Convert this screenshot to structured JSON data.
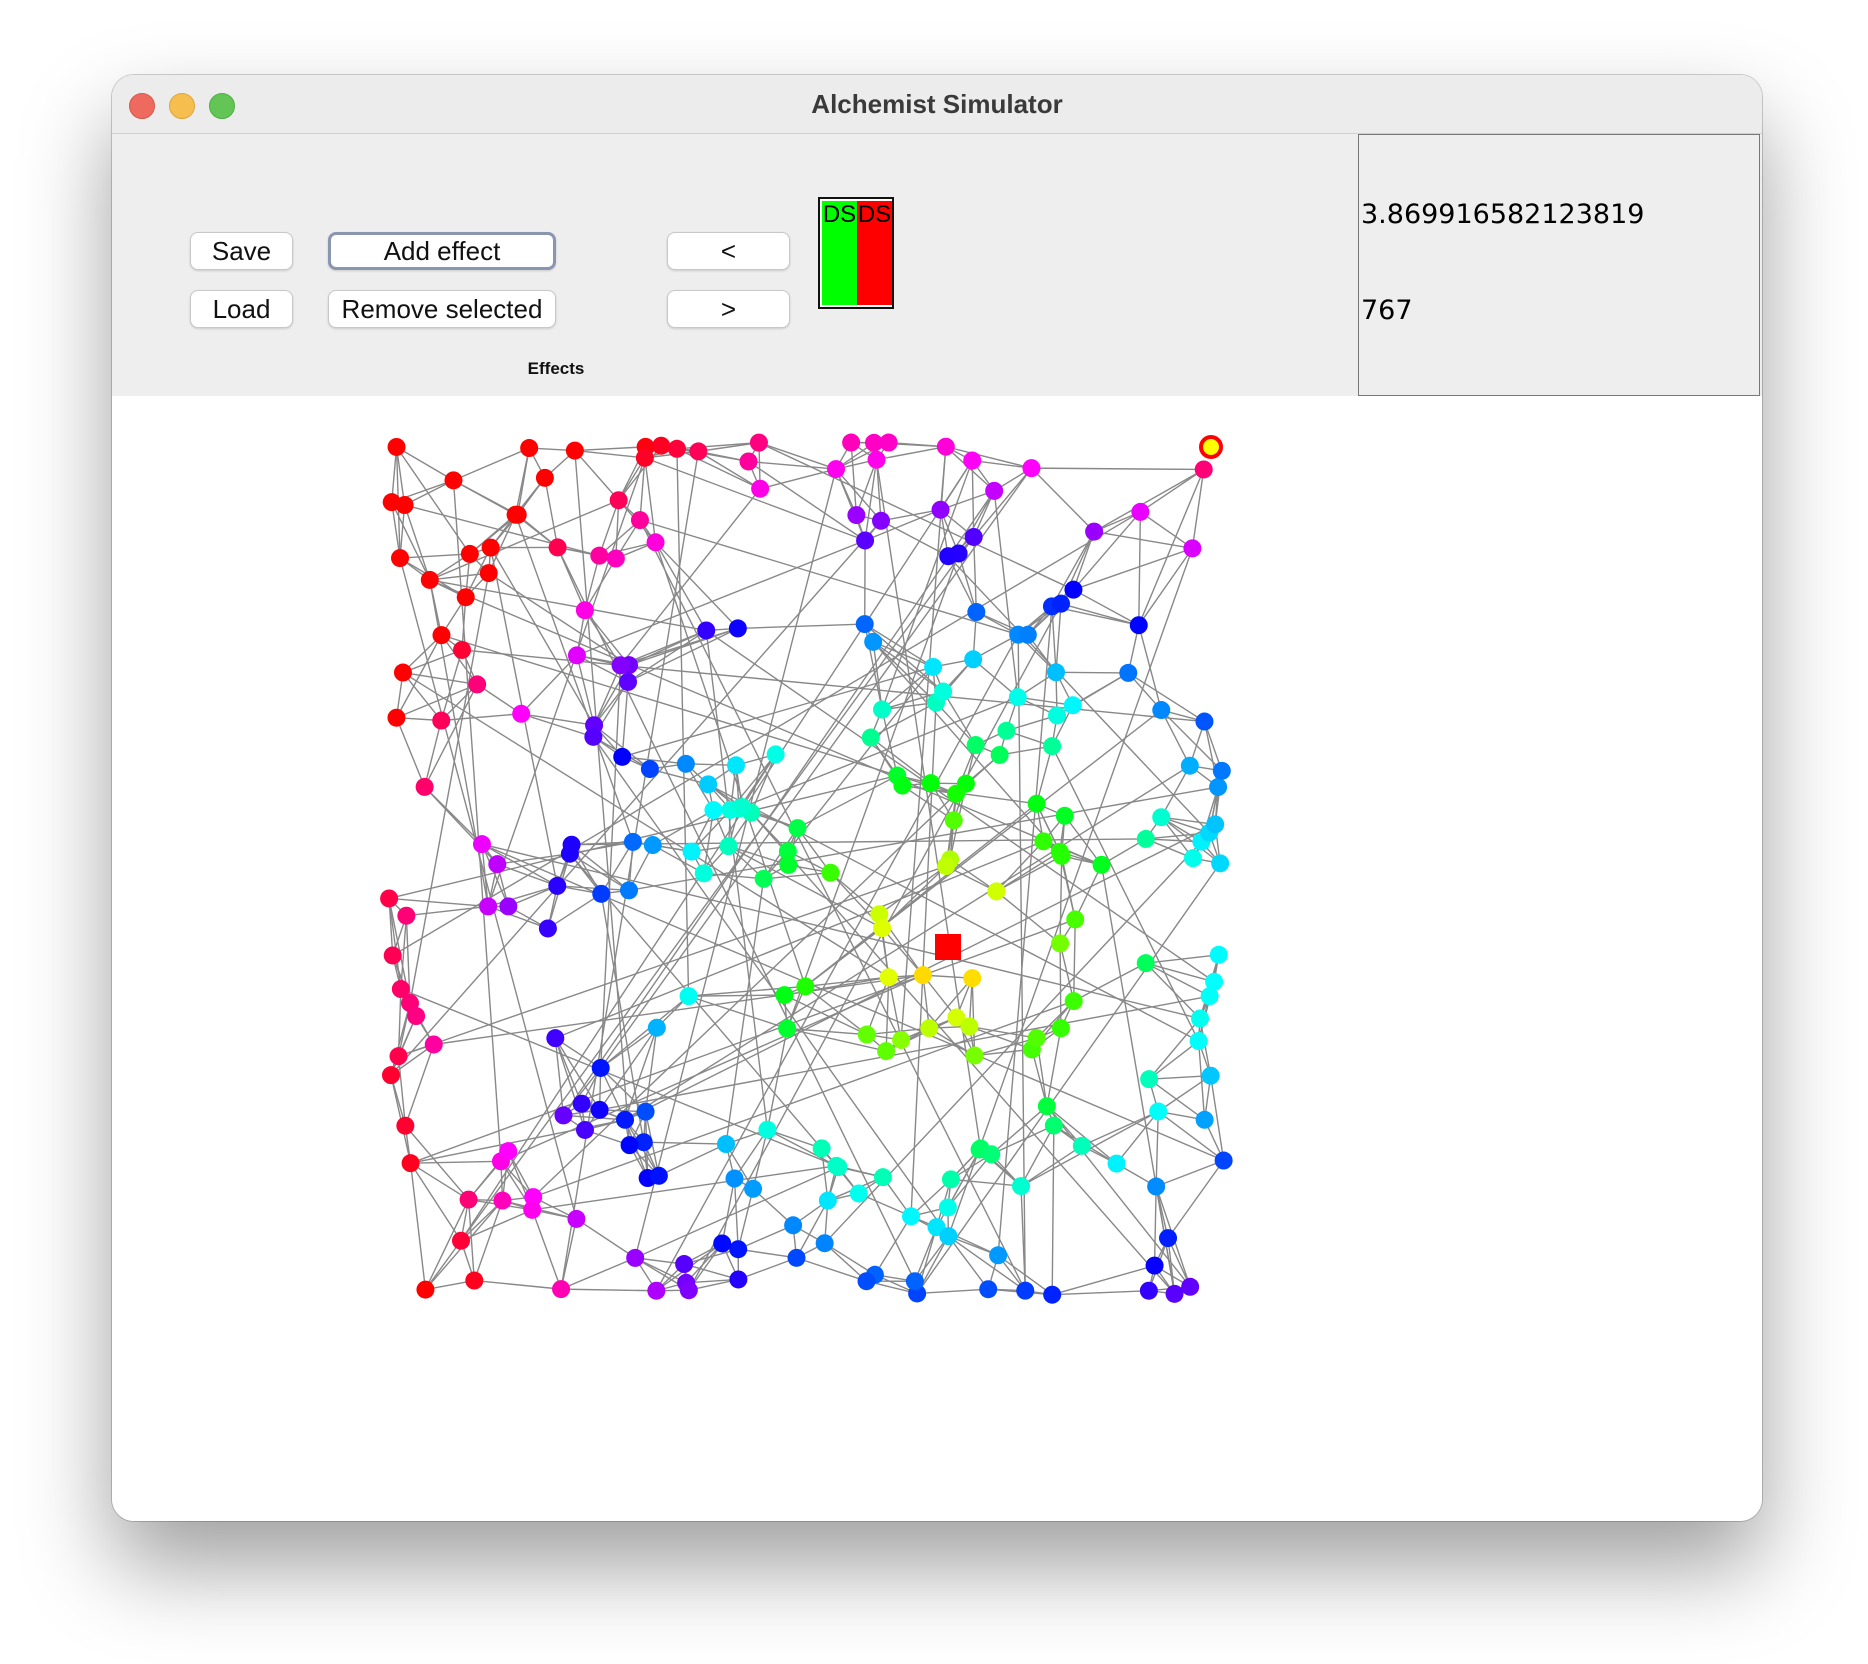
{
  "window": {
    "title": "Alchemist Simulator"
  },
  "toolbar": {
    "save_label": "Save",
    "load_label": "Load",
    "add_effect_label": "Add effect",
    "remove_selected_label": "Remove selected",
    "prev_label": "<",
    "next_label": ">",
    "effects_label": "Effects"
  },
  "effects": [
    {
      "label": "DS",
      "color": "#00ff00"
    },
    {
      "label": "DS",
      "color": "#ff0000"
    }
  ],
  "status": {
    "time": "3.869916582123819",
    "steps": "767"
  },
  "graph": {
    "edge_color": "#888888",
    "neighbors_per_node": 5
  }
}
